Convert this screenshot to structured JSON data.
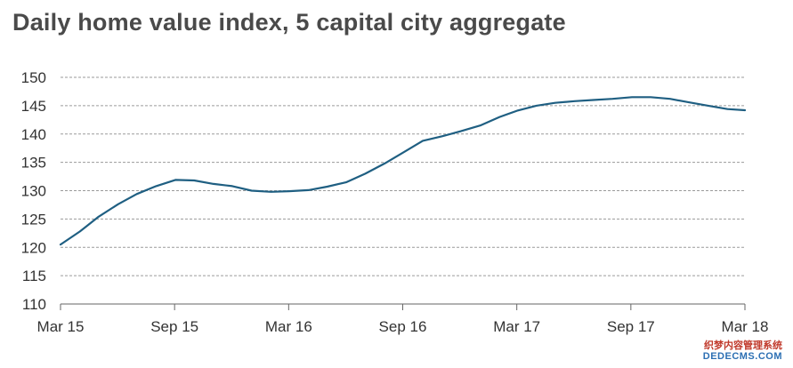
{
  "title": "Daily home value index, 5 capital city aggregate",
  "chart_data": {
    "type": "line",
    "title": "Daily home value index, 5 capital city aggregate",
    "xlabel": "",
    "ylabel": "",
    "ylim": [
      110,
      150
    ],
    "yticks": [
      110,
      115,
      120,
      125,
      130,
      135,
      140,
      145,
      150
    ],
    "xtick_labels": [
      "Mar 15",
      "Sep 15",
      "Mar 16",
      "Sep 16",
      "Mar 17",
      "Sep 17",
      "Mar 18"
    ],
    "grid": true,
    "line_color": "#1f5f82",
    "series": [
      {
        "x": [
          "2015-03-01",
          "2015-04-01",
          "2015-05-01",
          "2015-06-01",
          "2015-07-01",
          "2015-08-01",
          "2015-09-01",
          "2015-10-01",
          "2015-11-01",
          "2015-12-01",
          "2016-01-01",
          "2016-02-01",
          "2016-03-01",
          "2016-04-01",
          "2016-05-01",
          "2016-06-01",
          "2016-07-01",
          "2016-08-01",
          "2016-09-01",
          "2016-10-01",
          "2016-11-01",
          "2016-12-01",
          "2017-01-01",
          "2017-02-01",
          "2017-03-01",
          "2017-04-01",
          "2017-05-01",
          "2017-06-01",
          "2017-07-01",
          "2017-08-01",
          "2017-09-01",
          "2017-10-01",
          "2017-11-01",
          "2017-12-01",
          "2018-01-01",
          "2018-02-01",
          "2018-03-01"
        ],
        "values": [
          120.5,
          122.8,
          125.4,
          127.6,
          129.4,
          130.8,
          131.9,
          131.8,
          131.2,
          130.8,
          130.0,
          129.8,
          129.9,
          130.1,
          130.7,
          131.5,
          133.0,
          134.8,
          136.8,
          138.8,
          139.6,
          140.5,
          141.5,
          143.0,
          144.1,
          145.0,
          145.5,
          145.8,
          146.0,
          146.2,
          146.5,
          146.5,
          146.2,
          145.6,
          145.0,
          144.4,
          144.2
        ]
      }
    ]
  },
  "watermark": {
    "line1": "织梦内容管理系统",
    "line2": "DEDECMS.COM"
  }
}
